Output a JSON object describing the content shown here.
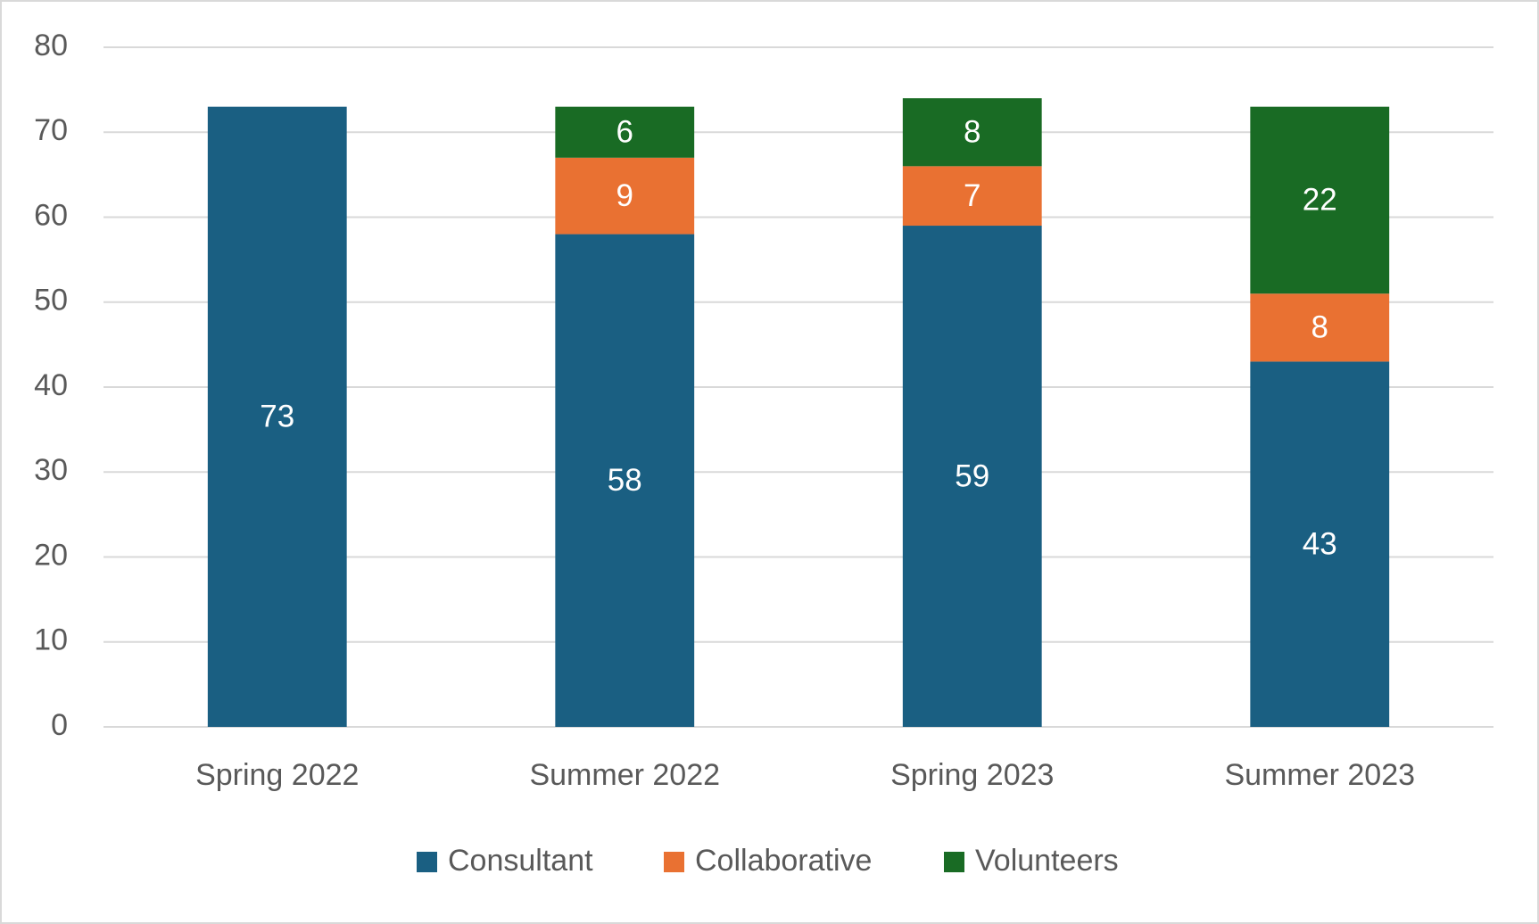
{
  "chart_data": {
    "type": "stacked_bar",
    "categories": [
      "Spring 2022",
      "Summer 2022",
      "Spring 2023",
      "Summer 2023"
    ],
    "series": [
      {
        "name": "Consultant",
        "color": "#1a5f82",
        "values": [
          73,
          58,
          59,
          43
        ]
      },
      {
        "name": "Collaborative",
        "color": "#e97132",
        "values": [
          null,
          9,
          7,
          8
        ]
      },
      {
        "name": "Volunteers",
        "color": "#196b24",
        "values": [
          null,
          6,
          8,
          22
        ]
      }
    ],
    "ylim": [
      0,
      80
    ],
    "yticks": [
      0,
      10,
      20,
      30,
      40,
      50,
      60,
      70,
      80
    ],
    "grid": true,
    "legend": "bottom"
  }
}
